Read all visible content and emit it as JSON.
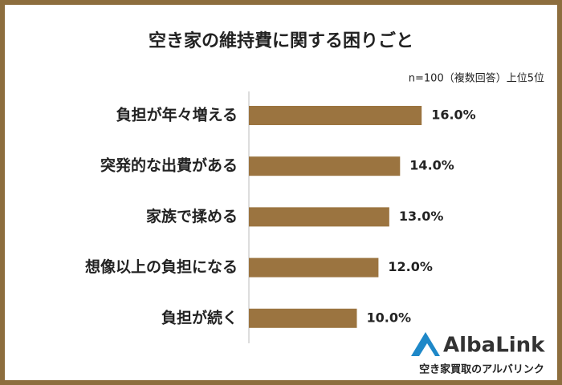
{
  "chart_data": {
    "type": "hbar",
    "title": "空き家の維持費に関する困りごと",
    "subtitle": "n=100（複数回答）上位5位",
    "categories": [
      "負担が年々増える",
      "突発的な出費がある",
      "家族で揉める",
      "想像以上の負担になる",
      "負担が続く"
    ],
    "values": [
      16,
      14,
      13,
      12,
      10
    ],
    "value_labels": [
      "16.0%",
      "14.0%",
      "13.0%",
      "12.0%",
      "10.0%"
    ],
    "color": "#9b7440"
  },
  "logo": {
    "name": "AlbaLink",
    "tagline": "空き家買取のアルバリンク"
  }
}
